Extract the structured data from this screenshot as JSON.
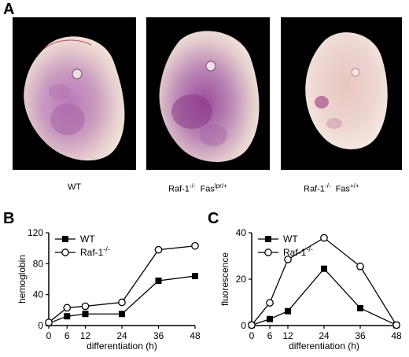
{
  "figure": {
    "panel_a_letter": "A",
    "panel_b_letter": "B",
    "panel_c_letter": "C"
  },
  "photos": [
    {
      "id": "wt",
      "label_main": "WT",
      "label_sup": "",
      "label_tail": "",
      "label_sup2": ""
    },
    {
      "id": "raf-faslpr",
      "label_main": "Raf-1",
      "label_sup": "-/-",
      "label_tail": "  Fas",
      "label_sup2": "lpr/+"
    },
    {
      "id": "raf-fas",
      "label_main": "Raf-1",
      "label_sup": "-/-",
      "label_tail": "  Fas",
      "label_sup2": "+/+"
    }
  ],
  "chart_data": [
    {
      "type": "line",
      "panel": "B",
      "xlabel": "differentiation (h)",
      "ylabel": "hemoglobin",
      "x": [
        0,
        6,
        12,
        24,
        36,
        48
      ],
      "xlim": [
        0,
        48
      ],
      "ylim": [
        0,
        120
      ],
      "yticks": [
        0,
        40,
        80,
        120
      ],
      "xticks": [
        0,
        6,
        12,
        24,
        36,
        48
      ],
      "series": [
        {
          "name": "WT",
          "marker": "filled-square",
          "values": [
            3,
            12,
            15,
            15,
            58,
            64
          ]
        },
        {
          "name": "Raf-1",
          "name_sup": "-/-",
          "marker": "open-circle",
          "values": [
            4,
            23,
            25,
            30,
            98,
            103
          ]
        }
      ],
      "legend": "top-left"
    },
    {
      "type": "line",
      "panel": "C",
      "xlabel": "differentiation (h)",
      "ylabel": "fluorescence",
      "x": [
        0,
        6,
        12,
        24,
        36,
        48
      ],
      "xlim": [
        0,
        48
      ],
      "ylim": [
        0,
        40
      ],
      "yticks": [
        0,
        20,
        40
      ],
      "xticks": [
        0,
        6,
        12,
        24,
        36,
        48
      ],
      "series": [
        {
          "name": "WT",
          "marker": "filled-square",
          "values": [
            0.2,
            2.8,
            6.2,
            24.5,
            7.5,
            0.2
          ]
        },
        {
          "name": "Raf-1",
          "name_sup": "-/-",
          "marker": "open-circle",
          "values": [
            0.2,
            9.8,
            28.5,
            37.8,
            25.5,
            0.2
          ]
        }
      ],
      "legend": "top-left"
    }
  ]
}
